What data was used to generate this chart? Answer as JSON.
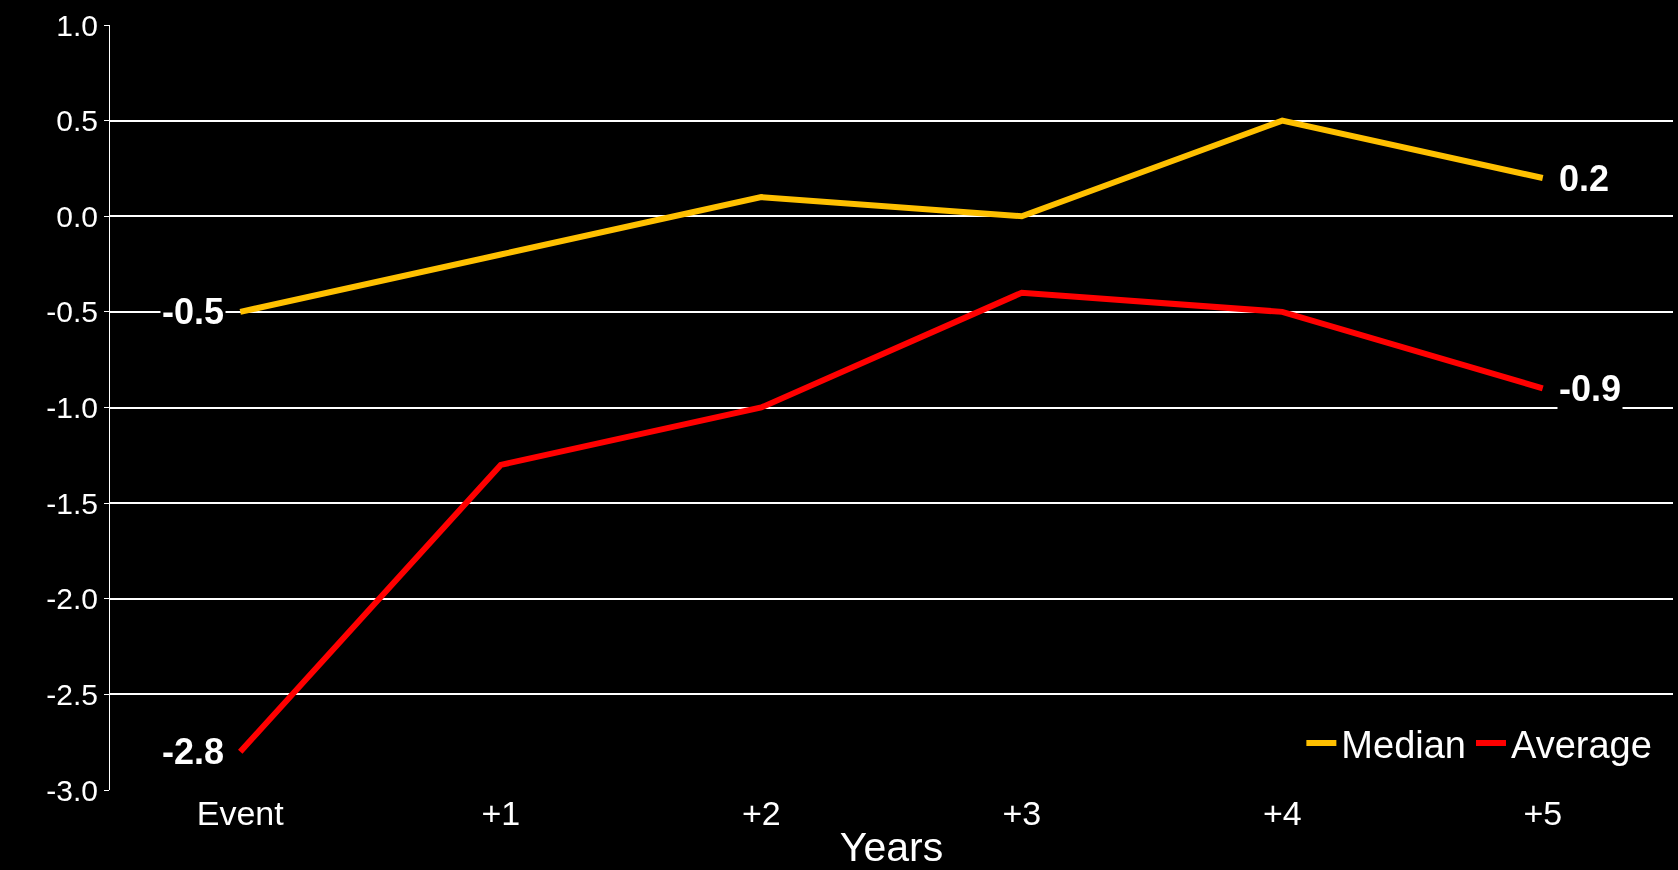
{
  "chart_data": {
    "type": "line",
    "xlabel": "Years",
    "categories": [
      "Event",
      "+1",
      "+2",
      "+3",
      "+4",
      "+5"
    ],
    "series": [
      {
        "name": "Median",
        "color": "#ffc000",
        "values": [
          -0.5,
          -0.2,
          0.1,
          0.0,
          0.5,
          0.2
        ],
        "value_labels": [
          "-0.5",
          null,
          null,
          null,
          null,
          "0.2"
        ]
      },
      {
        "name": "Average",
        "color": "#ff0000",
        "values": [
          -2.8,
          -1.3,
          -1.0,
          -0.4,
          -0.5,
          -0.9
        ],
        "value_labels": [
          "-2.8",
          null,
          null,
          null,
          null,
          "-0.9"
        ]
      }
    ],
    "ylim": [
      -3,
      1
    ],
    "yticks": [
      {
        "value": -3,
        "label": "-3.0"
      },
      {
        "value": -2.5,
        "label": "-2.5"
      },
      {
        "value": -2,
        "label": "-2.0"
      },
      {
        "value": -1.5,
        "label": "-1.5"
      },
      {
        "value": -1,
        "label": "-1.0"
      },
      {
        "value": -0.5,
        "label": "-0.5"
      },
      {
        "value": 0,
        "label": "0.0"
      },
      {
        "value": 0.5,
        "label": "0.5"
      },
      {
        "value": 1,
        "label": "1.0"
      }
    ],
    "grid": "y",
    "legend": "bottom right",
    "marker": "none",
    "line_style": "solid"
  }
}
